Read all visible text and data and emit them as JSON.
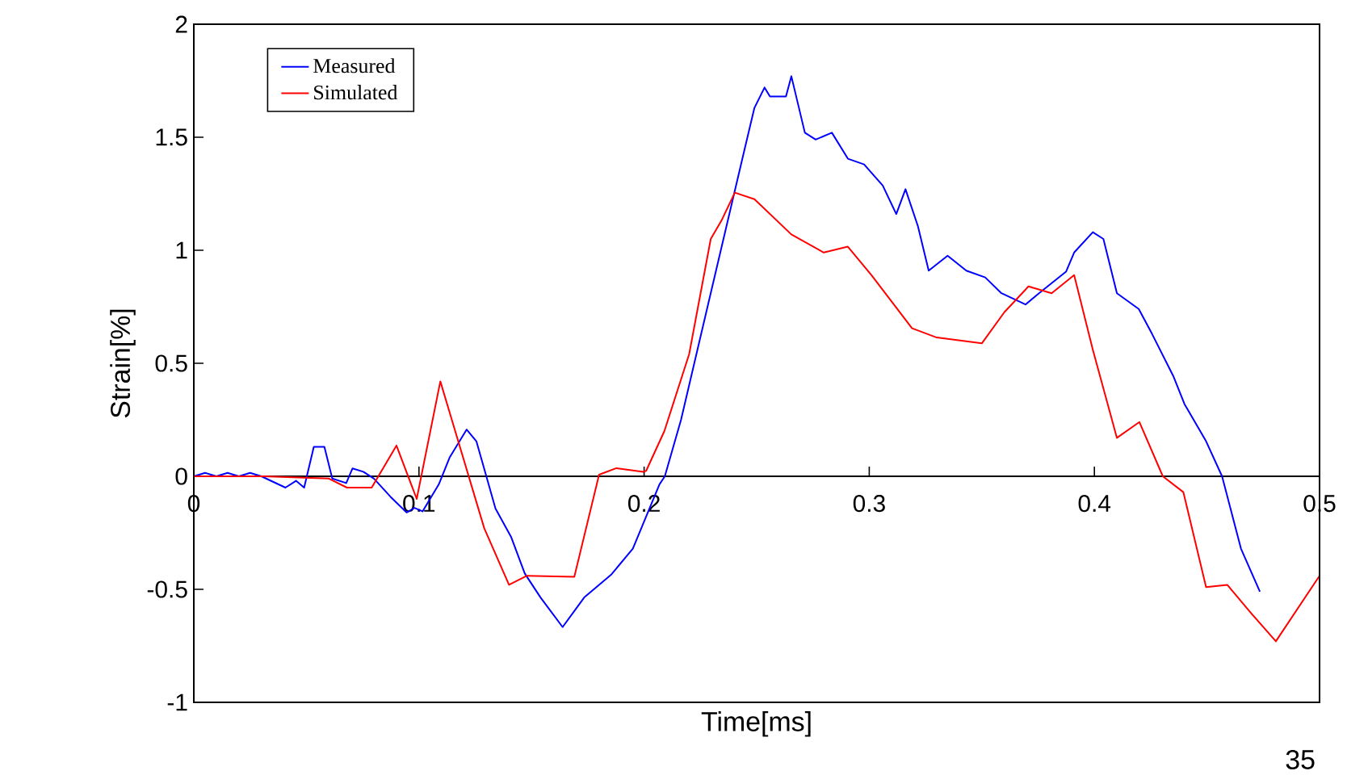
{
  "chart_data": {
    "type": "line",
    "xlabel": "Time[ms]",
    "ylabel": "Strain[%]",
    "xlim": [
      0,
      0.5
    ],
    "ylim": [
      -1,
      2
    ],
    "xticks": [
      0,
      0.1,
      0.2,
      0.3,
      0.4,
      0.5
    ],
    "yticks": [
      -1,
      -0.5,
      0,
      0.5,
      1,
      1.5,
      2
    ],
    "legend": "top left",
    "grid": false,
    "marker": "none",
    "line_style": "solid",
    "annotations": [
      "35"
    ],
    "series": [
      {
        "name": "Measured",
        "color": "#0000ff",
        "x": [
          0,
          0.005,
          0.01,
          0.015,
          0.02,
          0.025,
          0.03,
          0.0407,
          0.0454,
          0.049,
          0.0533,
          0.058,
          0.0615,
          0.0677,
          0.0705,
          0.0753,
          0.08,
          0.0873,
          0.0945,
          0.098,
          0.1016,
          0.1088,
          0.1136,
          0.1212,
          0.1255,
          0.134,
          0.141,
          0.147,
          0.154,
          0.1638,
          0.1734,
          0.1853,
          0.195,
          0.2068,
          0.2092,
          0.2164,
          0.2248,
          0.2343,
          0.2439,
          0.249,
          0.2535,
          0.2559,
          0.263,
          0.2654,
          0.2714,
          0.2762,
          0.2834,
          0.2905,
          0.2977,
          0.306,
          0.312,
          0.3161,
          0.3216,
          0.3264,
          0.3348,
          0.3431,
          0.3515,
          0.3587,
          0.3694,
          0.3754,
          0.3874,
          0.391,
          0.3993,
          0.404,
          0.41,
          0.4197,
          0.4256,
          0.4352,
          0.44,
          0.4496,
          0.4567,
          0.4651,
          0.4735
        ],
        "values": [
          0,
          0.015,
          0,
          0.015,
          0,
          0.015,
          0,
          -0.05,
          -0.02,
          -0.05,
          0.13,
          0.13,
          -0.01,
          -0.03,
          0.035,
          0.02,
          -0.01,
          -0.09,
          -0.16,
          -0.14,
          -0.155,
          -0.036,
          0.083,
          0.207,
          0.155,
          -0.143,
          -0.27,
          -0.43,
          -0.536,
          -0.667,
          -0.536,
          -0.436,
          -0.32,
          -0.036,
          0,
          0.25,
          0.607,
          1.01,
          1.416,
          1.63,
          1.72,
          1.68,
          1.68,
          1.77,
          1.52,
          1.49,
          1.52,
          1.405,
          1.38,
          1.286,
          1.16,
          1.27,
          1.107,
          0.91,
          0.976,
          0.91,
          0.88,
          0.81,
          0.76,
          0.81,
          0.905,
          0.99,
          1.08,
          1.05,
          0.81,
          0.74,
          0.63,
          0.44,
          0.32,
          0.155,
          0,
          -0.32,
          -0.51
        ]
      },
      {
        "name": "Simulated",
        "color": "#ff0000",
        "x": [
          0,
          0.031,
          0.06,
          0.068,
          0.079,
          0.09,
          0.099,
          0.1095,
          0.129,
          0.14,
          0.148,
          0.169,
          0.18,
          0.1877,
          0.1997,
          0.2009,
          0.209,
          0.22,
          0.2296,
          0.2343,
          0.2403,
          0.249,
          0.2654,
          0.2798,
          0.2905,
          0.301,
          0.319,
          0.33,
          0.35,
          0.36,
          0.3707,
          0.381,
          0.391,
          0.3993,
          0.41,
          0.42,
          0.4304,
          0.4395,
          0.4496,
          0.459,
          0.47,
          0.4806,
          0.5
        ],
        "values": [
          0,
          0,
          -0.01,
          -0.05,
          -0.05,
          0.136,
          -0.1,
          0.42,
          -0.23,
          -0.48,
          -0.44,
          -0.445,
          0.007,
          0.036,
          0.02,
          0.024,
          0.2,
          0.54,
          1.05,
          1.13,
          1.255,
          1.226,
          1.07,
          0.99,
          1.016,
          0.89,
          0.655,
          0.614,
          0.588,
          0.726,
          0.84,
          0.81,
          0.89,
          0.56,
          0.17,
          0.24,
          0,
          -0.07,
          -0.49,
          -0.48,
          -0.61,
          -0.73,
          -0.44
        ]
      }
    ]
  }
}
